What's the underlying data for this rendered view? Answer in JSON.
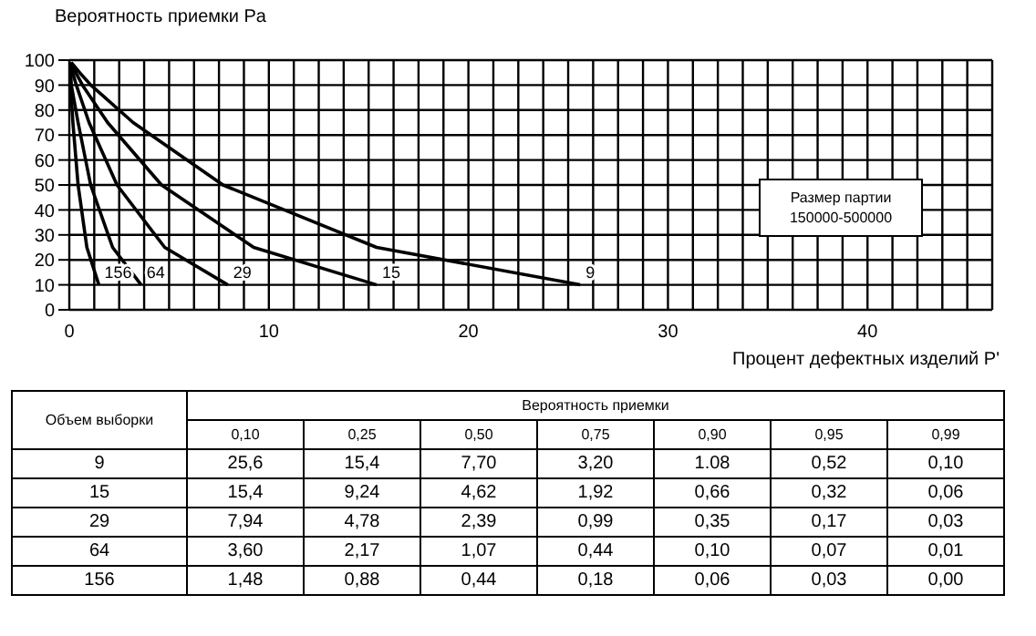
{
  "chart_data": {
    "type": "line",
    "ylabel": "Вероятность приемки Pa",
    "xlabel": "Процент дефектных изделий P'",
    "xlim": [
      0,
      46.25
    ],
    "ylim": [
      0,
      100
    ],
    "xticks": [
      0,
      {
        "value": 1.25,
        "label": null
      },
      {
        "value": 2.5,
        "label": null
      },
      {
        "value": 3.75,
        "label": null
      },
      {
        "value": 5,
        "label": null
      },
      {
        "value": 6.25,
        "label": null
      },
      {
        "value": 7.5,
        "label": null
      },
      {
        "value": 8.75,
        "label": null
      },
      10,
      {
        "value": 11.25,
        "label": null
      },
      {
        "value": 12.5,
        "label": null
      },
      {
        "value": 13.75,
        "label": null
      },
      {
        "value": 15,
        "label": null
      },
      {
        "value": 16.25,
        "label": null
      },
      {
        "value": 17.5,
        "label": null
      },
      {
        "value": 18.75,
        "label": null
      },
      20,
      {
        "value": 21.25,
        "label": null
      },
      {
        "value": 22.5,
        "label": null
      },
      {
        "value": 23.75,
        "label": null
      },
      {
        "value": 25,
        "label": null
      },
      {
        "value": 26.25,
        "label": null
      },
      {
        "value": 27.5,
        "label": null
      },
      {
        "value": 28.75,
        "label": null
      },
      30,
      {
        "value": 31.25,
        "label": null
      },
      {
        "value": 32.5,
        "label": null
      },
      {
        "value": 33.75,
        "label": null
      },
      {
        "value": 35,
        "label": null
      },
      {
        "value": 36.25,
        "label": null
      },
      {
        "value": 37.5,
        "label": null
      },
      {
        "value": 38.75,
        "label": null
      },
      40,
      {
        "value": 41.25,
        "label": null
      },
      {
        "value": 42.5,
        "label": null
      },
      {
        "value": 43.75,
        "label": null
      },
      {
        "value": 45,
        "label": null
      }
    ],
    "yticks": [
      0,
      10,
      20,
      30,
      40,
      50,
      60,
      70,
      80,
      90,
      100
    ],
    "grid": true,
    "marker": "none",
    "line_style": "solid",
    "annotations": [
      "Размер партии 150000-500000",
      "Объем выборки",
      "Вероятность приемки",
      "0,10",
      "0,25",
      "0,50",
      "0,75",
      "0,90",
      "0,95",
      "0,99",
      "25,6",
      "15,4",
      "7,70",
      "3,20",
      "1.08",
      "0,52",
      "0,10",
      "15,4",
      "9,24",
      "4,62",
      "1,92",
      "0,66",
      "0,32",
      "0,06",
      "7,94",
      "4,78",
      "2,39",
      "0,99",
      "0,35",
      "0,17",
      "0,03",
      "3,60",
      "2,17",
      "1,07",
      "0,44",
      "0,10",
      "0,07",
      "0,01",
      "1,48",
      "0,88",
      "0,44",
      "0,18",
      "0,06",
      "0,03",
      "0,00"
    ],
    "series": [
      {
        "name": "9",
        "color": "#000000",
        "x": [
          25.6,
          15.4,
          7.7,
          3.2,
          1.08,
          0.52,
          0.1
        ],
        "values": [
          10,
          25,
          50,
          75,
          90,
          95,
          99
        ]
      },
      {
        "name": "15",
        "color": "#000000",
        "x": [
          15.4,
          9.24,
          4.62,
          1.92,
          0.66,
          0.32,
          0.06
        ],
        "values": [
          10,
          25,
          50,
          75,
          90,
          95,
          99
        ]
      },
      {
        "name": "29",
        "color": "#000000",
        "x": [
          7.94,
          4.78,
          2.39,
          0.99,
          0.35,
          0.17,
          0.03
        ],
        "values": [
          10,
          25,
          50,
          75,
          90,
          95,
          99
        ]
      },
      {
        "name": "64",
        "color": "#000000",
        "x": [
          3.6,
          2.17,
          1.07,
          0.44,
          0.1,
          0.07,
          0.01
        ],
        "values": [
          10,
          25,
          50,
          75,
          90,
          95,
          99
        ]
      },
      {
        "name": "156",
        "color": "#000000",
        "x": [
          1.48,
          0.88,
          0.44,
          0.18,
          0.06,
          0.03,
          0.0
        ],
        "values": [
          10,
          25,
          50,
          75,
          90,
          95,
          99
        ]
      }
    ]
  }
}
